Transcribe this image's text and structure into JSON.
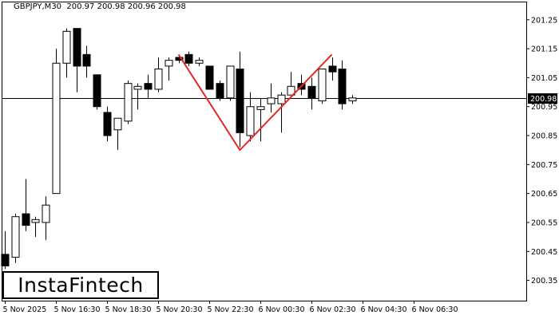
{
  "header": {
    "symbol": "GBPJPY,M30",
    "ohlc": "200.97 200.98 200.96 200.98"
  },
  "brand": {
    "logo_text": "InstaFintech"
  },
  "chart_data": {
    "type": "candlestick",
    "title": "GBPJPY,M30",
    "ylim": [
      200.28,
      201.31
    ],
    "y_ticks": [
      "201.25",
      "201.15",
      "201.05",
      "200.95",
      "200.85",
      "200.75",
      "200.65",
      "200.55",
      "200.45",
      "200.35"
    ],
    "x_ticks": [
      "5 Nov 2025",
      "5 Nov 16:30",
      "5 Nov 18:30",
      "5 Nov 20:30",
      "5 Nov 22:30",
      "6 Nov 00:30",
      "6 Nov 02:30",
      "6 Nov 04:30",
      "6 Nov 06:30"
    ],
    "x_tick_bar_index": [
      0,
      5,
      10,
      15,
      20,
      25,
      30,
      35,
      40
    ],
    "current_price": 200.98,
    "current_price_label": "200.98",
    "candles": [
      {
        "o": 200.44,
        "h": 200.52,
        "l": 200.39,
        "c": 200.4
      },
      {
        "o": 200.43,
        "h": 200.58,
        "l": 200.41,
        "c": 200.57
      },
      {
        "o": 200.58,
        "h": 200.7,
        "l": 200.52,
        "c": 200.54
      },
      {
        "o": 200.55,
        "h": 200.57,
        "l": 200.5,
        "c": 200.56
      },
      {
        "o": 200.55,
        "h": 200.64,
        "l": 200.49,
        "c": 200.61
      },
      {
        "o": 200.65,
        "h": 201.15,
        "l": 200.65,
        "c": 201.1
      },
      {
        "o": 201.1,
        "h": 201.22,
        "l": 201.05,
        "c": 201.21
      },
      {
        "o": 201.22,
        "h": 201.22,
        "l": 201.0,
        "c": 201.09
      },
      {
        "o": 201.13,
        "h": 201.16,
        "l": 201.05,
        "c": 201.09
      },
      {
        "o": 201.06,
        "h": 201.06,
        "l": 200.94,
        "c": 200.95
      },
      {
        "o": 200.93,
        "h": 200.95,
        "l": 200.83,
        "c": 200.85
      },
      {
        "o": 200.87,
        "h": 200.91,
        "l": 200.8,
        "c": 200.91
      },
      {
        "o": 200.9,
        "h": 201.04,
        "l": 200.89,
        "c": 201.03
      },
      {
        "o": 201.01,
        "h": 201.03,
        "l": 200.94,
        "c": 201.02
      },
      {
        "o": 201.03,
        "h": 201.06,
        "l": 200.98,
        "c": 201.01
      },
      {
        "o": 201.01,
        "h": 201.12,
        "l": 201.0,
        "c": 201.08
      },
      {
        "o": 201.09,
        "h": 201.12,
        "l": 201.04,
        "c": 201.11
      },
      {
        "o": 201.12,
        "h": 201.13,
        "l": 201.1,
        "c": 201.11
      },
      {
        "o": 201.13,
        "h": 201.14,
        "l": 201.09,
        "c": 201.1
      },
      {
        "o": 201.1,
        "h": 201.12,
        "l": 201.09,
        "c": 201.11
      },
      {
        "o": 201.09,
        "h": 201.09,
        "l": 201.01,
        "c": 201.01
      },
      {
        "o": 201.03,
        "h": 201.04,
        "l": 200.97,
        "c": 200.98
      },
      {
        "o": 200.98,
        "h": 201.09,
        "l": 200.97,
        "c": 201.09
      },
      {
        "o": 201.08,
        "h": 201.14,
        "l": 200.81,
        "c": 200.86
      },
      {
        "o": 200.85,
        "h": 201.0,
        "l": 200.83,
        "c": 200.95
      },
      {
        "o": 200.94,
        "h": 200.98,
        "l": 200.83,
        "c": 200.95
      },
      {
        "o": 200.96,
        "h": 201.03,
        "l": 200.93,
        "c": 200.98
      },
      {
        "o": 200.96,
        "h": 201.0,
        "l": 200.86,
        "c": 200.99
      },
      {
        "o": 200.99,
        "h": 201.07,
        "l": 200.99,
        "c": 201.02
      },
      {
        "o": 201.03,
        "h": 201.06,
        "l": 200.99,
        "c": 201.01
      },
      {
        "o": 201.02,
        "h": 201.05,
        "l": 200.94,
        "c": 200.98
      },
      {
        "o": 200.97,
        "h": 201.08,
        "l": 200.96,
        "c": 201.08
      },
      {
        "o": 201.09,
        "h": 201.12,
        "l": 201.04,
        "c": 201.07
      },
      {
        "o": 201.08,
        "h": 201.11,
        "l": 200.94,
        "c": 200.96
      },
      {
        "o": 200.97,
        "h": 200.99,
        "l": 200.96,
        "c": 200.98
      }
    ],
    "candle_start_index": 0,
    "pattern_line": {
      "color": "#e8261f",
      "points": [
        {
          "i": 17,
          "y": 201.13
        },
        {
          "i": 23,
          "y": 200.8
        },
        {
          "i": 32,
          "y": 201.13
        }
      ]
    },
    "colors": {
      "bull": "#ffffff",
      "bear": "#000000",
      "outline": "#000000",
      "grid_line": "#000000",
      "price_tag_bg": "#000000",
      "price_tag_text": "#ffffff"
    }
  }
}
